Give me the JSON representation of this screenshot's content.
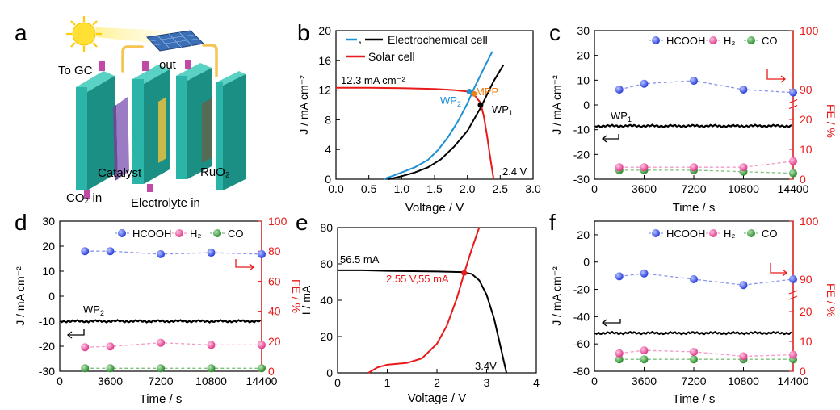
{
  "chart_data": [
    {
      "panel": "a",
      "type": "schematic",
      "panel_label": "a",
      "labels": {
        "to_gc": "To GC",
        "out": "out",
        "co2_in": "CO₂ in",
        "catalyst": "Catalyst",
        "electrolyte_in": "Electrolyte in",
        "ruo2": "RuO₂"
      },
      "colors": {
        "sun": "#ffe033",
        "cell_wall": "#2bb5a8",
        "catalyst_plate": "#9b7bc4",
        "membrane": "#c9b84a",
        "anode_plate": "#556b55",
        "tube": "#ffcc44",
        "panel": "#3b6fb6"
      }
    },
    {
      "panel": "b",
      "type": "line",
      "panel_label": "b",
      "xlabel": "Voltage / V",
      "ylabel": "J / mA cm⁻²",
      "xlim": [
        0,
        3.0
      ],
      "ylim": [
        0,
        20
      ],
      "xticks": [
        "0.0",
        "0.5",
        "1.0",
        "1.5",
        "2.0",
        "2.5",
        "3.0"
      ],
      "yticks": [
        "0",
        "4",
        "8",
        "12",
        "16",
        "20"
      ],
      "legend": [
        {
          "name": "Electrochemical cell",
          "prefix": ",",
          "colors": [
            "#1e90d6",
            "#000000"
          ]
        },
        {
          "name": "Solar cell",
          "colors": [
            "#e81a1a"
          ]
        }
      ],
      "series": [
        {
          "name": "Solar cell",
          "color": "#e81a1a",
          "x": [
            0.0,
            0.5,
            1.0,
            1.5,
            1.8,
            2.0,
            2.1,
            2.2,
            2.25,
            2.3,
            2.35,
            2.4
          ],
          "y": [
            12.3,
            12.3,
            12.25,
            12.15,
            12.0,
            11.8,
            11.4,
            10.3,
            8.5,
            5.8,
            2.8,
            0.0
          ]
        },
        {
          "name": "Electrochemical cell (WP₂)",
          "color": "#1e90d6",
          "x": [
            0.72,
            0.85,
            1.0,
            1.2,
            1.4,
            1.55,
            1.7,
            1.85,
            2.0,
            2.1,
            2.2,
            2.3,
            2.38
          ],
          "y": [
            0.0,
            0.4,
            0.9,
            1.6,
            2.6,
            3.9,
            5.6,
            7.7,
            10.2,
            12.2,
            14.0,
            15.8,
            17.2
          ]
        },
        {
          "name": "Electrochemical cell (WP₁)",
          "color": "#000000",
          "x": [
            0.8,
            1.0,
            1.2,
            1.4,
            1.6,
            1.8,
            2.0,
            2.2,
            2.4,
            2.55
          ],
          "y": [
            0.0,
            0.4,
            0.9,
            1.6,
            2.7,
            4.4,
            6.5,
            9.6,
            13.2,
            15.4
          ]
        }
      ],
      "points": [
        {
          "label": "WP₂",
          "x": 2.03,
          "y": 11.8,
          "color": "#1e90d6"
        },
        {
          "label": "MPP",
          "x": 2.1,
          "y": 11.5,
          "color": "#ee7d12"
        },
        {
          "label": "WP₁",
          "x": 2.2,
          "y": 10.0,
          "color": "#000000"
        }
      ],
      "annotations": {
        "jsc": "12.3 mA cm⁻²",
        "voc": "2.4 V",
        "wp1": "WP",
        "wp1_sub": "1",
        "wp2": "WP",
        "wp2_sub": "2",
        "mpp": "MPP"
      }
    },
    {
      "panel": "c",
      "type": "line",
      "panel_label": "c",
      "xlabel": "Time / s",
      "ylabel_left": "J / mA cm⁻²",
      "ylabel_right": "FE / %",
      "xlim": [
        0,
        14400
      ],
      "xticks": [
        "0",
        "3600",
        "7200",
        "10800",
        "14400"
      ],
      "yticks_left": [
        "-30",
        "-20",
        "-10",
        "0",
        "10",
        "20",
        "30"
      ],
      "yticks_right_low": [
        "0",
        "10",
        "20"
      ],
      "yticks_right_high": [
        "90",
        "100"
      ],
      "legend": [
        "HCOOH",
        "H₂",
        "CO"
      ],
      "wp_label": "WP",
      "wp_sub": "1",
      "current_density": -8.5,
      "fe": {
        "time": [
          1800,
          3600,
          7200,
          10800,
          14400
        ],
        "HCOOH": [
          90.0,
          91.0,
          91.5,
          90.0,
          89.5
        ],
        "H2": [
          4.0,
          4.0,
          4.0,
          4.0,
          6.0
        ],
        "CO": [
          3.0,
          3.0,
          3.0,
          2.5,
          2.0
        ]
      }
    },
    {
      "panel": "d",
      "type": "line",
      "panel_label": "d",
      "xlabel": "Time / s",
      "ylabel_left": "J / mA cm⁻²",
      "ylabel_right": "FE / %",
      "xlim": [
        0,
        14400
      ],
      "xticks": [
        "0",
        "3600",
        "7200",
        "10800",
        "14400"
      ],
      "yticks_left": [
        "-30",
        "-20",
        "-10",
        "0",
        "10",
        "20",
        "30"
      ],
      "yticks_right": [
        "0",
        "20",
        "40",
        "60",
        "80",
        "100"
      ],
      "legend": [
        "HCOOH",
        "H₂",
        "CO"
      ],
      "wp_label": "WP",
      "wp_sub": "2",
      "current_density": -10.0,
      "fe": {
        "time": [
          1800,
          3600,
          7200,
          10800,
          14400
        ],
        "HCOOH": [
          80.0,
          80.0,
          78.0,
          79.0,
          78.0
        ],
        "H2": [
          16.0,
          16.5,
          19.0,
          17.5,
          17.5
        ],
        "CO": [
          2.0,
          2.0,
          2.0,
          2.0,
          2.0
        ]
      }
    },
    {
      "panel": "e",
      "type": "line",
      "panel_label": "e",
      "xlabel": "Voltage / V",
      "ylabel": "I / mA",
      "xlim": [
        0,
        4
      ],
      "ylim": [
        0,
        80
      ],
      "xticks": [
        "0",
        "1",
        "2",
        "3",
        "4"
      ],
      "yticks": [
        "0",
        "20",
        "40",
        "60",
        "80"
      ],
      "series": [
        {
          "name": "Solar cell",
          "color": "#000000",
          "x": [
            0.0,
            0.5,
            1.0,
            1.5,
            2.0,
            2.5,
            2.7,
            2.85,
            3.0,
            3.15,
            3.25,
            3.35,
            3.4
          ],
          "y": [
            56.5,
            56.5,
            56.2,
            56.0,
            55.8,
            55.5,
            54.5,
            51.0,
            43.0,
            30.0,
            18.0,
            6.0,
            0.0
          ]
        },
        {
          "name": "Electrochemical cell",
          "color": "#e81a1a",
          "x": [
            0.62,
            0.8,
            1.0,
            1.4,
            1.7,
            2.0,
            2.2,
            2.4,
            2.55,
            2.7,
            2.85
          ],
          "y": [
            0.0,
            3.0,
            4.5,
            5.5,
            8.0,
            16.0,
            26.0,
            41.0,
            55.0,
            68.0,
            80.0
          ]
        }
      ],
      "points": [
        {
          "label": "2.55 V,55 mA",
          "x": 2.55,
          "y": 55.0,
          "color": "#e81a1a"
        }
      ],
      "annotations": {
        "isc": "56.5 mA",
        "op": "2.55 V,55 mA",
        "voc": "3.4V"
      }
    },
    {
      "panel": "f",
      "type": "line",
      "panel_label": "f",
      "xlabel": "Time / s",
      "ylabel_left": "J / mA cm⁻²",
      "ylabel_right": "FE / %",
      "xlim": [
        0,
        14400
      ],
      "xticks": [
        "0",
        "3600",
        "7200",
        "10800",
        "14400"
      ],
      "yticks_left": [
        "-80",
        "-60",
        "-40",
        "-20",
        "0",
        "20"
      ],
      "yticks_right_low": [
        "0",
        "10",
        "20"
      ],
      "yticks_right_high": [
        "90",
        "100"
      ],
      "legend": [
        "HCOOH",
        "H₂",
        "CO"
      ],
      "current_density": -52.0,
      "fe": {
        "time": [
          1800,
          3600,
          7200,
          10800,
          14400
        ],
        "HCOOH": [
          90.5,
          91.0,
          90.0,
          89.0,
          90.0
        ],
        "H2": [
          6.0,
          7.0,
          6.5,
          5.0,
          5.5
        ],
        "CO": [
          4.0,
          4.0,
          4.0,
          4.0,
          4.0
        ]
      }
    }
  ],
  "colors": {
    "black": "#000000",
    "red": "#e81a1a",
    "blue": "#1e90d6",
    "orange": "#ee7d12",
    "hcooh": "#2a3fdc",
    "h2": "#e0398c",
    "co": "#2b8a2b"
  }
}
